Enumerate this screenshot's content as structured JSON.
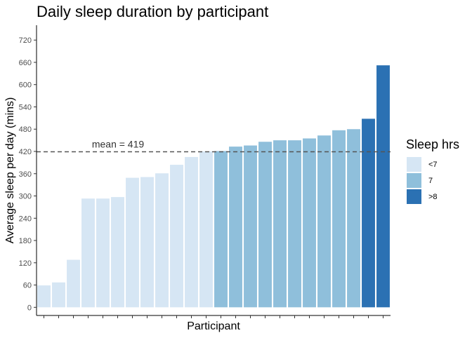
{
  "chart_data": {
    "type": "bar",
    "title": "Daily sleep duration by participant",
    "xlabel": "Participant",
    "ylabel": "Average sleep per day (mins)",
    "ylim": [
      -22,
      760
    ],
    "yticks": [
      0,
      60,
      120,
      180,
      240,
      300,
      360,
      420,
      480,
      540,
      600,
      660,
      720
    ],
    "grid": false,
    "legend": {
      "title": "Sleep hrs",
      "position": "right",
      "entries": [
        {
          "label": "<7",
          "color": "#d6e6f4"
        },
        {
          "label": "7",
          "color": "#8fbfdb"
        },
        {
          "label": ">8",
          "color": "#2b71b3"
        }
      ]
    },
    "mean_line": {
      "value": 419,
      "label": "mean =  419"
    },
    "values": [
      59,
      67,
      128,
      293,
      293,
      297,
      349,
      351,
      361,
      384,
      405,
      420,
      421,
      433,
      436,
      446,
      450,
      450,
      455,
      463,
      477,
      480,
      508,
      652
    ],
    "groups": [
      "<7",
      "<7",
      "<7",
      "<7",
      "<7",
      "<7",
      "<7",
      "<7",
      "<7",
      "<7",
      "<7",
      "<7",
      "7",
      "7",
      "7",
      "7",
      "7",
      "7",
      "7",
      "7",
      "7",
      "7",
      ">8",
      ">8"
    ]
  }
}
